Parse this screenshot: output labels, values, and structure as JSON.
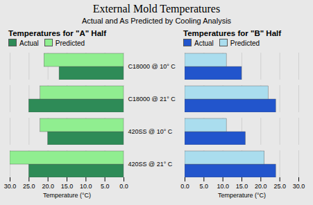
{
  "title": "External Mold Temperatures",
  "subtitle": "Actual and As Predicted by Cooling Analysis",
  "chart_data": [
    {
      "type": "bar",
      "orientation": "horizontal",
      "title": "Temperatures for \"A\" Half",
      "categories": [
        "420SS @ 21° C",
        "420SS @ 10° C",
        "C18000 @ 21° C",
        "C18000 @ 10° C"
      ],
      "series": [
        {
          "name": "Actual",
          "color": "#2e8b57",
          "values": [
            25.0,
            20.0,
            25.0,
            17.0
          ]
        },
        {
          "name": "Predicted",
          "color": "#90ee90",
          "values": [
            30.0,
            22.0,
            22.0,
            21.0
          ]
        }
      ],
      "xlim": [
        30,
        0
      ],
      "xticks": [
        {
          "value": 30,
          "label": "30.0"
        },
        {
          "value": 25,
          "label": "25.0"
        },
        {
          "value": 20,
          "label": "20.0"
        },
        {
          "value": 15,
          "label": "15.0"
        },
        {
          "value": 10,
          "label": "10.0"
        },
        {
          "value": 5,
          "label": "5.0"
        },
        {
          "value": 0,
          "label": "0.0"
        }
      ],
      "xlabel": "Temperature (°C)",
      "grid": true,
      "legend": "upper left"
    },
    {
      "type": "bar",
      "orientation": "horizontal",
      "title": "Temperatures for \"B\" Half",
      "categories": [
        "420SS @ 21° C",
        "420SS @ 10° C",
        "C18000 @ 21° C",
        "C18000 @ 10° C"
      ],
      "series": [
        {
          "name": "Actual",
          "color": "#2255cc",
          "values": [
            24.0,
            16.0,
            24.0,
            15.0
          ]
        },
        {
          "name": "Predicted",
          "color": "#aaddee",
          "values": [
            21.0,
            11.0,
            22.0,
            11.0
          ]
        }
      ],
      "xlim": [
        0,
        30
      ],
      "xticks": [
        {
          "value": 0,
          "label": "0.0"
        },
        {
          "value": 5,
          "label": "5.0"
        },
        {
          "value": 10,
          "label": "10.0"
        },
        {
          "value": 15,
          "label": "15.0"
        },
        {
          "value": 20,
          "label": "20.0"
        },
        {
          "value": 25,
          "label": "25.0"
        },
        {
          "value": 30,
          "label": "30.0"
        }
      ],
      "xlabel": "Temperature (°C)",
      "grid": true,
      "legend": "upper left"
    }
  ]
}
